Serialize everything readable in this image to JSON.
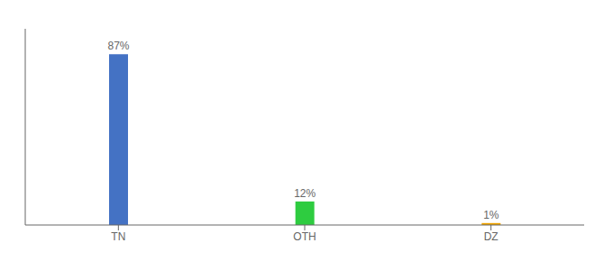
{
  "chart_data": {
    "type": "bar",
    "categories": [
      "TN",
      "OTH",
      "DZ"
    ],
    "values": [
      87,
      12,
      1
    ],
    "value_labels": [
      "87%",
      "12%",
      "1%"
    ],
    "colors": [
      "#4472c4",
      "#2ecc40",
      "#f0a500"
    ],
    "ylim": [
      0,
      100
    ],
    "data_labels": true,
    "tick_labels": "x",
    "grid": false
  }
}
